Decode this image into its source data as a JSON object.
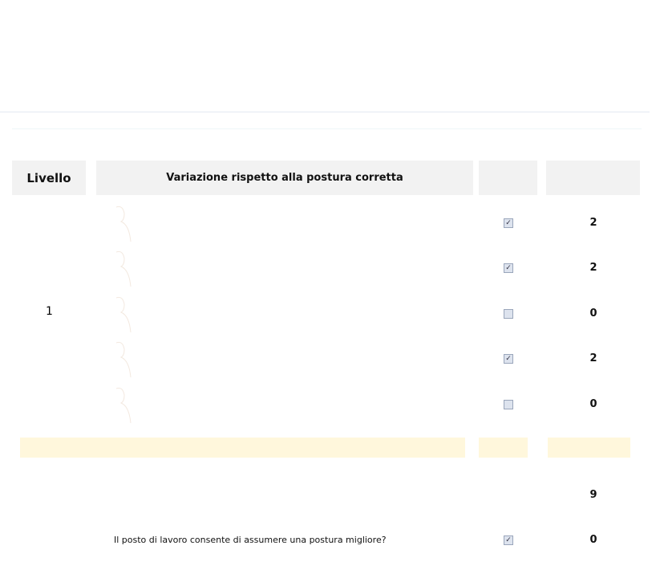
{
  "table": {
    "headers": {
      "level": "Livello",
      "variation": "Variazione rispetto alla postura corretta"
    },
    "level_value": "1",
    "rows": [
      {
        "checked": true,
        "score": "2"
      },
      {
        "checked": true,
        "score": "2"
      },
      {
        "checked": false,
        "score": "0"
      },
      {
        "checked": true,
        "score": "2"
      },
      {
        "checked": false,
        "score": "0"
      }
    ],
    "total": "9",
    "question": {
      "label": "Il posto di lavoro consente di assumere una postura migliore?",
      "checked": true,
      "score": "0"
    }
  },
  "colors": {
    "header_bg": "#f2f2f2",
    "band_bg": "#fff7dc",
    "checkbox": "#dde3ee"
  }
}
